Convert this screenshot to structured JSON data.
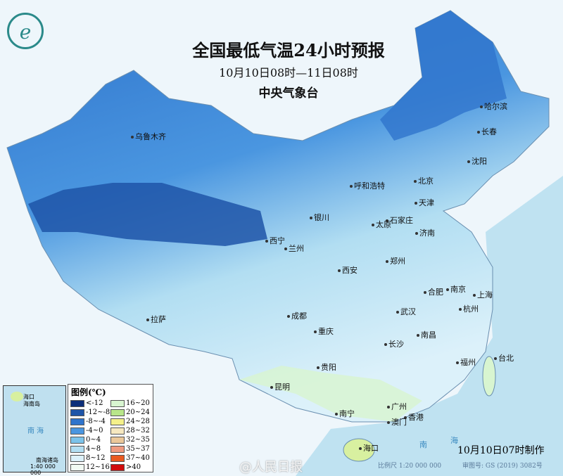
{
  "header": {
    "title": "全国最低气温24小时预报",
    "period": "10月10日08时—11日08时",
    "agency": "中央气象台"
  },
  "cities": [
    "乌鲁木齐",
    "哈尔滨",
    "长春",
    "沈阳",
    "呼和浩特",
    "北京",
    "天津",
    "石家庄",
    "太原",
    "济南",
    "银川",
    "西宁",
    "兰州",
    "郑州",
    "西安",
    "合肥",
    "南京",
    "上海",
    "杭州",
    "武汉",
    "成都",
    "重庆",
    "拉萨",
    "长沙",
    "南昌",
    "福州",
    "台北",
    "贵阳",
    "昆明",
    "南宁",
    "广州",
    "香港",
    "澳门",
    "海口"
  ],
  "legend": {
    "title": "图例(℃)",
    "items": [
      {
        "label": "<-12",
        "color": "#0d2f7a"
      },
      {
        "label": "16~20",
        "color": "#d8f5d0"
      },
      {
        "label": "-12~-8",
        "color": "#1f55a8"
      },
      {
        "label": "20~24",
        "color": "#b8e68a"
      },
      {
        "label": "-8~-4",
        "color": "#2f74cc"
      },
      {
        "label": "24~28",
        "color": "#f4f08a"
      },
      {
        "label": "-4~0",
        "color": "#4a96e0"
      },
      {
        "label": "28~32",
        "color": "#f6e8c0"
      },
      {
        "label": "0~4",
        "color": "#7cc3ea"
      },
      {
        "label": "32~35",
        "color": "#ebc89a"
      },
      {
        "label": "4~8",
        "color": "#b2def2"
      },
      {
        "label": "35~37",
        "color": "#ef9a80"
      },
      {
        "label": "8~12",
        "color": "#dcf1fa"
      },
      {
        "label": "37~40",
        "color": "#ea5a20"
      },
      {
        "label": "12~16",
        "color": "#f2fbf4"
      },
      {
        "label": ">40",
        "color": "#d00c0c"
      }
    ]
  },
  "inset": {
    "label1": "海口",
    "label2": "海南岛",
    "sea": "南 海",
    "islands": "南海诸岛",
    "scale": "1:40 000 000"
  },
  "footer": {
    "made": "10月10日07时制作",
    "scale": "比例尺 1:20 000 000",
    "review": "审图号: GS (2019) 3082号",
    "watermark": "@人民日报"
  },
  "sea_labels": [
    "南",
    "海"
  ]
}
